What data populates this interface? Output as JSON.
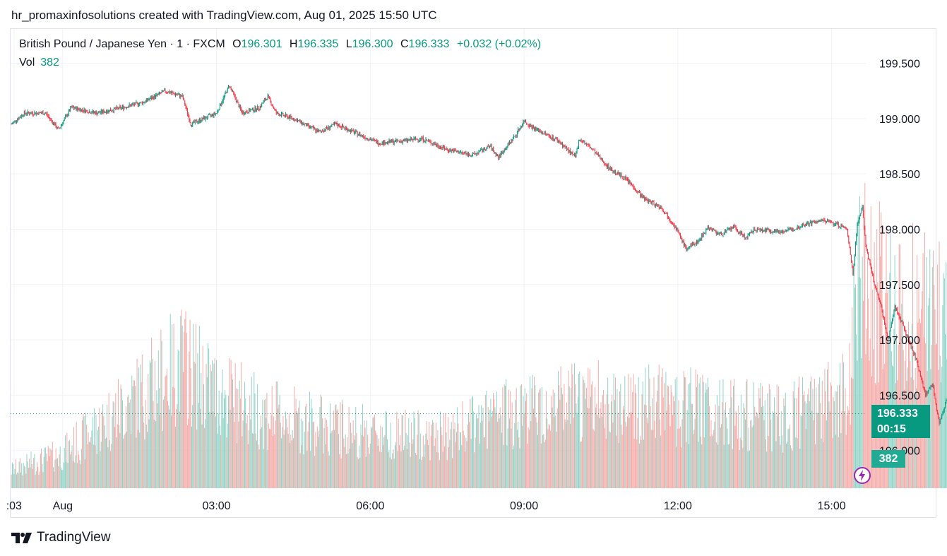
{
  "header": {
    "text": "hr_promaxinfosolutions created with TradingView.com, Aug 01, 2025 15:50 UTC"
  },
  "legend": {
    "symbol": "British Pound / Japanese Yen · 1 · FXCM",
    "open_label": "O",
    "open": "196.301",
    "high_label": "H",
    "high": "196.335",
    "low_label": "L",
    "low": "196.300",
    "close_label": "C",
    "close": "196.333",
    "change": "+0.032 (+0.02%)",
    "vol_label": "Vol",
    "vol": "382"
  },
  "price_tag": {
    "price": "196.333",
    "countdown": "00:15"
  },
  "vol_tag": {
    "value": "382"
  },
  "footer": {
    "brand": "TradingView"
  },
  "colors": {
    "up": "#089981",
    "down": "#f23645",
    "vol_up": "#8fd3c6",
    "vol_down": "#f4a9a6",
    "grid": "#f0f3fa"
  },
  "chart_data": {
    "type": "candlestick",
    "title": "British Pound / Japanese Yen · 1 · FXCM",
    "y_ticks": [
      "199.500",
      "199.000",
      "198.500",
      "198.000",
      "197.500",
      "197.000",
      "196.500",
      "196.000"
    ],
    "y_tick_values": [
      199.5,
      199.0,
      198.5,
      198.0,
      197.5,
      197.0,
      196.5,
      196.0
    ],
    "ylim": [
      195.66,
      199.81
    ],
    "x_ticks": [
      ":03",
      "Aug",
      "03:00",
      "06:00",
      "09:00",
      "12:00",
      "15:00"
    ],
    "x_tick_minutes": [
      3,
      60,
      240,
      420,
      600,
      780,
      960
    ],
    "x_range_minutes": [
      -1,
      1000
    ],
    "last_price": 196.333,
    "price_path": [
      [
        0,
        198.95
      ],
      [
        15,
        199.05
      ],
      [
        40,
        199.05
      ],
      [
        55,
        198.9
      ],
      [
        70,
        199.1
      ],
      [
        100,
        199.05
      ],
      [
        130,
        199.1
      ],
      [
        155,
        199.15
      ],
      [
        180,
        199.25
      ],
      [
        200,
        199.2
      ],
      [
        210,
        198.95
      ],
      [
        240,
        199.05
      ],
      [
        255,
        199.3
      ],
      [
        270,
        199.05
      ],
      [
        290,
        199.1
      ],
      [
        300,
        199.2
      ],
      [
        310,
        199.05
      ],
      [
        330,
        199.0
      ],
      [
        360,
        198.88
      ],
      [
        380,
        198.95
      ],
      [
        400,
        198.88
      ],
      [
        430,
        198.78
      ],
      [
        460,
        198.8
      ],
      [
        480,
        198.82
      ],
      [
        510,
        198.72
      ],
      [
        540,
        198.67
      ],
      [
        560,
        198.75
      ],
      [
        570,
        198.65
      ],
      [
        590,
        198.85
      ],
      [
        600,
        198.98
      ],
      [
        610,
        198.92
      ],
      [
        640,
        198.8
      ],
      [
        660,
        198.65
      ],
      [
        665,
        198.82
      ],
      [
        680,
        198.72
      ],
      [
        700,
        198.55
      ],
      [
        720,
        198.45
      ],
      [
        740,
        198.28
      ],
      [
        760,
        198.2
      ],
      [
        775,
        198.05
      ],
      [
        790,
        197.82
      ],
      [
        805,
        197.9
      ],
      [
        815,
        198.02
      ],
      [
        830,
        197.95
      ],
      [
        845,
        198.02
      ],
      [
        860,
        197.92
      ],
      [
        870,
        198.0
      ],
      [
        900,
        197.98
      ],
      [
        915,
        198.0
      ],
      [
        930,
        198.05
      ],
      [
        950,
        198.08
      ],
      [
        965,
        198.05
      ],
      [
        978,
        198.0
      ],
      [
        985,
        197.6
      ],
      [
        990,
        198.05
      ],
      [
        996,
        198.2
      ],
      [
        1000,
        197.85
      ],
      [
        1010,
        197.5
      ],
      [
        1018,
        197.3
      ],
      [
        1026,
        197.0
      ],
      [
        1034,
        197.3
      ],
      [
        1040,
        197.2
      ],
      [
        1050,
        197.0
      ],
      [
        1060,
        196.8
      ],
      [
        1070,
        196.5
      ],
      [
        1078,
        196.6
      ],
      [
        1086,
        196.25
      ],
      [
        1094,
        196.45
      ],
      [
        1100,
        196.6
      ],
      [
        1106,
        196.7
      ],
      [
        1112,
        196.55
      ],
      [
        1122,
        196.72
      ],
      [
        1132,
        196.6
      ],
      [
        1142,
        196.52
      ],
      [
        1152,
        196.42
      ],
      [
        1162,
        196.45
      ],
      [
        1172,
        196.35
      ],
      [
        1180,
        196.25
      ],
      [
        1186,
        196.3
      ],
      [
        1190,
        196.2
      ],
      [
        1196,
        196.3
      ],
      [
        1204,
        196.38
      ],
      [
        1210,
        196.33
      ]
    ],
    "volume_profile": [
      [
        0,
        8
      ],
      [
        60,
        15
      ],
      [
        120,
        32
      ],
      [
        200,
        55
      ],
      [
        240,
        42
      ],
      [
        300,
        32
      ],
      [
        400,
        25
      ],
      [
        500,
        22
      ],
      [
        600,
        35
      ],
      [
        700,
        38
      ],
      [
        800,
        35
      ],
      [
        900,
        30
      ],
      [
        980,
        40
      ],
      [
        990,
        95
      ],
      [
        1010,
        88
      ],
      [
        1040,
        80
      ],
      [
        1100,
        70
      ],
      [
        1160,
        55
      ],
      [
        1210,
        40
      ]
    ],
    "volume_ylim": [
      0,
      200
    ]
  }
}
